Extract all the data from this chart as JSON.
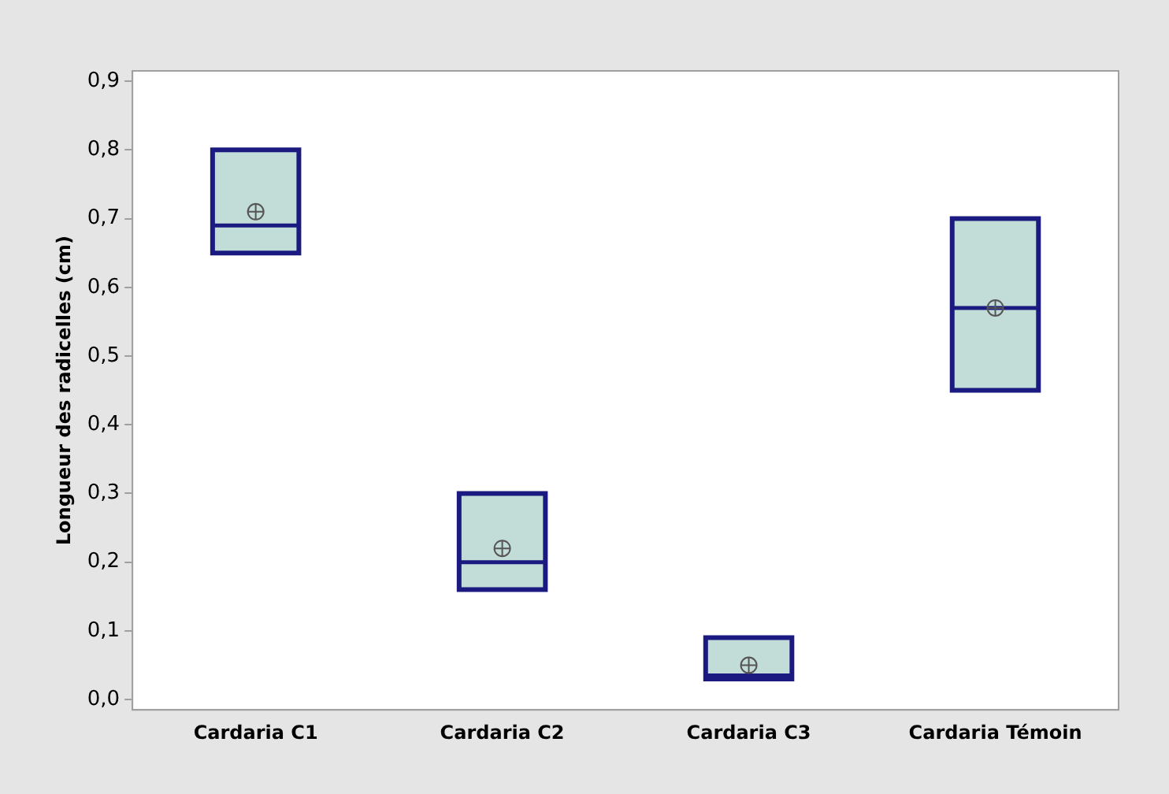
{
  "chart_data": {
    "type": "box",
    "ylabel": "Longueur des radicelles (cm)",
    "categories": [
      "Cardaria C1",
      "Cardaria C2",
      "Cardaria C3",
      "Cardaria Témoin"
    ],
    "color": "#c2dcd8",
    "boxes": [
      {
        "low": 0.65,
        "q1": 0.65,
        "median": 0.69,
        "q3": 0.8,
        "high": 0.8,
        "mean": 0.71
      },
      {
        "low": 0.16,
        "q1": 0.16,
        "median": 0.2,
        "q3": 0.3,
        "high": 0.3,
        "mean": 0.22
      },
      {
        "low": 0.03,
        "q1": 0.03,
        "median": 0.035,
        "q3": 0.09,
        "high": 0.09,
        "mean": 0.05
      },
      {
        "low": 0.45,
        "q1": 0.45,
        "median": 0.57,
        "q3": 0.7,
        "high": 0.7,
        "mean": 0.57
      }
    ],
    "ylim": [
      -0.015,
      0.915
    ],
    "yticks": [
      {
        "value": 0,
        "label": "0,0"
      },
      {
        "value": 0.1,
        "label": "0,1"
      },
      {
        "value": 0.2,
        "label": "0,2"
      },
      {
        "value": 0.3,
        "label": "0,3"
      },
      {
        "value": 0.4,
        "label": "0,4"
      },
      {
        "value": 0.5,
        "label": "0,5"
      },
      {
        "value": 0.6,
        "label": "0,6"
      },
      {
        "value": 0.7,
        "label": "0,7"
      },
      {
        "value": 0.8,
        "label": "0,8"
      },
      {
        "value": 0.9,
        "label": "0,9"
      }
    ],
    "grid": false,
    "legend": false
  }
}
